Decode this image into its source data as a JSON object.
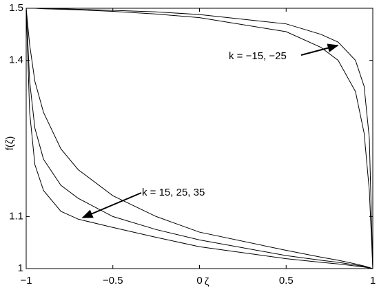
{
  "chart_data": {
    "type": "line",
    "xlabel": "ζ",
    "ylabel": "f(ζ)",
    "annotations": [
      "k = −15, −25",
      "k = 15, 25, 35"
    ],
    "x": [
      -1,
      -0.98,
      -0.95,
      -0.9,
      -0.8,
      -0.7,
      -0.5,
      -0.25,
      0,
      0.5,
      0.7,
      0.8,
      0.9,
      0.95,
      0.98,
      1
    ],
    "series": [
      {
        "color": "#000000",
        "values": [
          1.5,
          1.3,
          1.2,
          1.15,
          1.11,
          1.095,
          1.079,
          1.06,
          1.042,
          1.019,
          1.012,
          1.009,
          1.005,
          1.003,
          1.001,
          1
        ]
      },
      {
        "color": "#000000",
        "values": [
          1.5,
          1.36,
          1.27,
          1.21,
          1.16,
          1.135,
          1.1,
          1.075,
          1.055,
          1.025,
          1.016,
          1.012,
          1.007,
          1.004,
          1.002,
          1
        ]
      },
      {
        "color": "#000000",
        "values": [
          1.5,
          1.43,
          1.36,
          1.3,
          1.23,
          1.19,
          1.14,
          1.1,
          1.07,
          1.035,
          1.022,
          1.016,
          1.009,
          1.005,
          1.002,
          1
        ]
      },
      {
        "color": "#000000",
        "values": [
          1.5,
          1.5,
          1.5,
          1.5,
          1.499,
          1.498,
          1.496,
          1.493,
          1.488,
          1.47,
          1.45,
          1.435,
          1.4,
          1.35,
          1.25,
          1
        ]
      },
      {
        "color": "#000000",
        "values": [
          1.5,
          1.5,
          1.5,
          1.499,
          1.498,
          1.497,
          1.494,
          1.489,
          1.482,
          1.455,
          1.425,
          1.4,
          1.34,
          1.26,
          1.15,
          1
        ]
      }
    ],
    "xlim": [
      -1,
      1
    ],
    "xticks": [
      {
        "value": -1,
        "label": "−1"
      },
      {
        "value": -0.5,
        "label": "−0.5"
      },
      0,
      0.5,
      1
    ],
    "ylim": [
      1,
      1.5
    ],
    "yticks": [
      1,
      1.1,
      1.4,
      1.5
    ],
    "grid": false
  }
}
